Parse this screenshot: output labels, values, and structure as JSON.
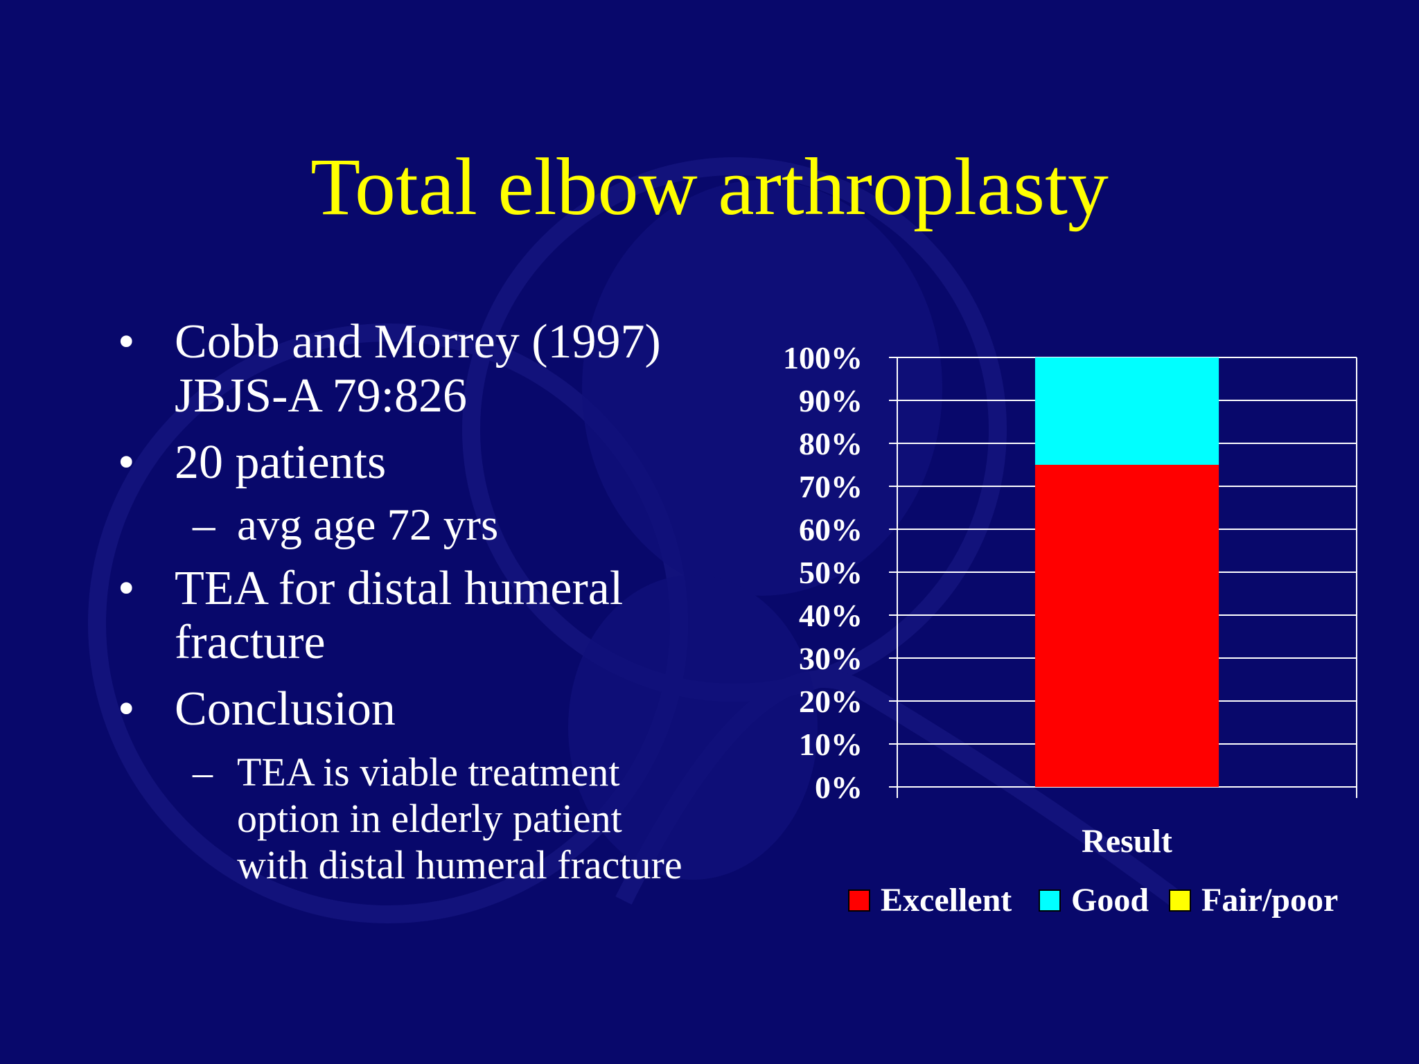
{
  "slide": {
    "title": "Total elbow arthroplasty",
    "bullets": [
      {
        "level": 1,
        "marker": "•",
        "text": "Cobb and Morrey (1997) JBJS-A 79:826"
      },
      {
        "level": 1,
        "marker": "•",
        "text": "20 patients"
      },
      {
        "level": 2,
        "marker": "–",
        "text": "avg age 72 yrs"
      },
      {
        "level": 1,
        "marker": "•",
        "text": "TEA for distal humeral fracture"
      },
      {
        "level": 1,
        "marker": "•",
        "text": "Conclusion"
      },
      {
        "level": 2,
        "marker": "–",
        "text": "TEA is viable treatment option in elderly patient with distal humeral fracture"
      }
    ]
  },
  "colors": {
    "background": "#08086b",
    "title": "#ffff00",
    "text": "#ffffff",
    "excellent": "#ff0000",
    "good": "#00ffff",
    "fair_poor": "#ffff00"
  },
  "chart_data": {
    "type": "bar",
    "stacked": true,
    "percent": true,
    "categories": [
      "Result"
    ],
    "series": [
      {
        "name": "Excellent",
        "values": [
          75
        ]
      },
      {
        "name": "Good",
        "values": [
          25
        ]
      },
      {
        "name": "Fair/poor",
        "values": [
          0
        ]
      }
    ],
    "xlabel": "Result",
    "ylabel": "",
    "ylim": [
      0,
      100
    ],
    "yticks": [
      "0%",
      "10%",
      "20%",
      "30%",
      "40%",
      "50%",
      "60%",
      "70%",
      "80%",
      "90%",
      "100%"
    ],
    "grid": true,
    "legend_position": "bottom"
  }
}
